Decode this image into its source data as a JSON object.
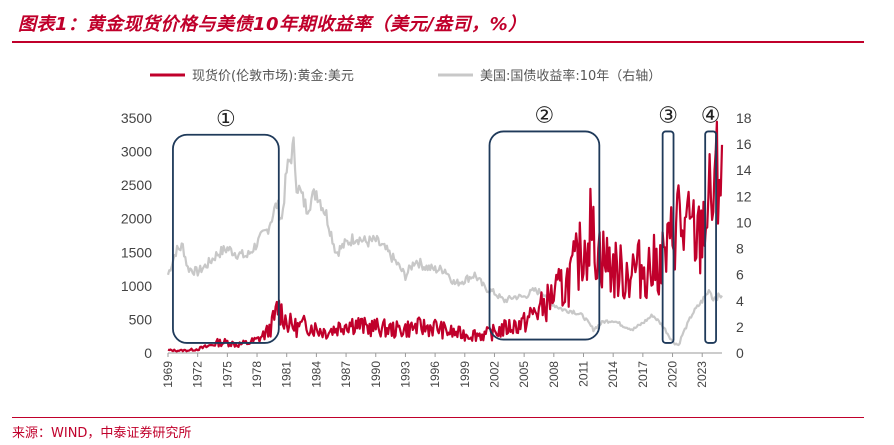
{
  "header": {
    "title": "图表1：黄金现货价格与美债10年期收益率（美元/盎司，%）"
  },
  "footer": {
    "source": "来源：WIND，中泰证券研究所"
  },
  "colors": {
    "accent": "#c0002b",
    "gold_series": "#c0002b",
    "yield_series": "#c8c8c8",
    "box": "#1f3a5a"
  },
  "chart_data": {
    "type": "line",
    "title": "黄金现货价格与美债10年期收益率（美元/盎司，%）",
    "x_ticks": [
      "1969",
      "1972",
      "1975",
      "1978",
      "1981",
      "1984",
      "1987",
      "1990",
      "1993",
      "1996",
      "1999",
      "2002",
      "2005",
      "2008",
      "2011",
      "2014",
      "2017",
      "2020",
      "2023"
    ],
    "x_range": [
      1969,
      2025
    ],
    "left_axis": {
      "ticks": [
        0,
        500,
        1000,
        1500,
        2000,
        2500,
        3000,
        3500
      ],
      "ylim": [
        0,
        3500
      ]
    },
    "right_axis": {
      "ticks": [
        0,
        2,
        4,
        6,
        8,
        10,
        12,
        14,
        16,
        18
      ],
      "ylim": [
        0,
        18
      ]
    },
    "series": [
      {
        "name": "现货价(伦敦市场):黄金:美元",
        "axis": "left",
        "points": [
          [
            1969,
            42
          ],
          [
            1970,
            36
          ],
          [
            1971,
            40
          ],
          [
            1972,
            58
          ],
          [
            1973,
            97
          ],
          [
            1974,
            154
          ],
          [
            1975,
            161
          ],
          [
            1976,
            125
          ],
          [
            1977,
            148
          ],
          [
            1978,
            193
          ],
          [
            1979,
            306
          ],
          [
            1979.5,
            420
          ],
          [
            1980,
            615
          ],
          [
            1980.1,
            690
          ],
          [
            1980.6,
            580
          ],
          [
            1981,
            460
          ],
          [
            1982,
            376
          ],
          [
            1983,
            424
          ],
          [
            1984,
            361
          ],
          [
            1985,
            317
          ],
          [
            1986,
            368
          ],
          [
            1987,
            446
          ],
          [
            1988,
            437
          ],
          [
            1989,
            381
          ],
          [
            1990,
            383
          ],
          [
            1991,
            362
          ],
          [
            1992,
            344
          ],
          [
            1993,
            360
          ],
          [
            1994,
            384
          ],
          [
            1995,
            384
          ],
          [
            1996,
            388
          ],
          [
            1997,
            331
          ],
          [
            1998,
            294
          ],
          [
            1999,
            279
          ],
          [
            2000,
            279
          ],
          [
            2001,
            271
          ],
          [
            2002,
            310
          ],
          [
            2003,
            363
          ],
          [
            2004,
            409
          ],
          [
            2005,
            444
          ],
          [
            2006,
            603
          ],
          [
            2007,
            695
          ],
          [
            2008,
            872
          ],
          [
            2009,
            972
          ],
          [
            2010,
            1225
          ],
          [
            2011,
            1572
          ],
          [
            2011.7,
            1880
          ],
          [
            2012,
            1669
          ],
          [
            2013,
            1411
          ],
          [
            2014,
            1266
          ],
          [
            2015,
            1160
          ],
          [
            2016,
            1250
          ],
          [
            2017,
            1257
          ],
          [
            2018,
            1268
          ],
          [
            2019,
            1393
          ],
          [
            2019.6,
            1500
          ],
          [
            2020,
            1770
          ],
          [
            2020.6,
            2060
          ],
          [
            2021,
            1800
          ],
          [
            2022,
            1800
          ],
          [
            2022.8,
            1650
          ],
          [
            2023,
            1940
          ],
          [
            2024,
            2300
          ],
          [
            2024.6,
            2600
          ],
          [
            2025,
            3100
          ]
        ]
      },
      {
        "name": "美国:国债收益率:10年（右轴）",
        "axis": "right",
        "points": [
          [
            1969,
            6.0
          ],
          [
            1969.8,
            7.8
          ],
          [
            1970.5,
            8.2
          ],
          [
            1971,
            6.5
          ],
          [
            1972,
            6.2
          ],
          [
            1973,
            6.8
          ],
          [
            1974,
            7.6
          ],
          [
            1975,
            8.0
          ],
          [
            1976,
            7.6
          ],
          [
            1977,
            7.4
          ],
          [
            1978,
            8.4
          ],
          [
            1979,
            9.4
          ],
          [
            1980,
            11.4
          ],
          [
            1980.5,
            10.2
          ],
          [
            1981,
            13.9
          ],
          [
            1981.7,
            15.8
          ],
          [
            1982,
            13.0
          ],
          [
            1983,
            11.1
          ],
          [
            1984,
            12.4
          ],
          [
            1985,
            10.6
          ],
          [
            1986,
            7.7
          ],
          [
            1987,
            8.4
          ],
          [
            1988,
            8.9
          ],
          [
            1989,
            8.5
          ],
          [
            1990,
            8.6
          ],
          [
            1991,
            7.9
          ],
          [
            1992,
            7.0
          ],
          [
            1993,
            5.9
          ],
          [
            1994,
            7.1
          ],
          [
            1995,
            6.6
          ],
          [
            1996,
            6.4
          ],
          [
            1997,
            6.4
          ],
          [
            1998,
            5.3
          ],
          [
            1999,
            5.6
          ],
          [
            2000,
            6.0
          ],
          [
            2001,
            5.0
          ],
          [
            2002,
            4.6
          ],
          [
            2003,
            4.0
          ],
          [
            2004,
            4.3
          ],
          [
            2005,
            4.3
          ],
          [
            2006,
            4.8
          ],
          [
            2007,
            4.6
          ],
          [
            2008,
            3.7
          ],
          [
            2009,
            3.3
          ],
          [
            2010,
            3.2
          ],
          [
            2011,
            2.8
          ],
          [
            2012,
            1.8
          ],
          [
            2013,
            2.4
          ],
          [
            2014,
            2.5
          ],
          [
            2015,
            2.1
          ],
          [
            2016,
            1.8
          ],
          [
            2017,
            2.3
          ],
          [
            2018,
            2.9
          ],
          [
            2019,
            2.1
          ],
          [
            2020,
            0.9
          ],
          [
            2020.6,
            0.6
          ],
          [
            2021,
            1.4
          ],
          [
            2022,
            3.0
          ],
          [
            2023,
            4.0
          ],
          [
            2023.8,
            4.9
          ],
          [
            2024,
            4.2
          ],
          [
            2025,
            4.4
          ]
        ]
      }
    ],
    "annotations": [
      {
        "label": "①",
        "x_start": 1969.5,
        "x_end": 1980.2,
        "y_low": 150,
        "y_high": 3250
      },
      {
        "label": "②",
        "x_start": 2001.5,
        "x_end": 2012.6,
        "y_low": 200,
        "y_high": 3300
      },
      {
        "label": "③",
        "x_start": 2019.0,
        "x_end": 2020.1,
        "y_low": 150,
        "y_high": 3300
      },
      {
        "label": "④",
        "x_start": 2023.3,
        "x_end": 2024.4,
        "y_low": 150,
        "y_high": 3300
      }
    ]
  }
}
